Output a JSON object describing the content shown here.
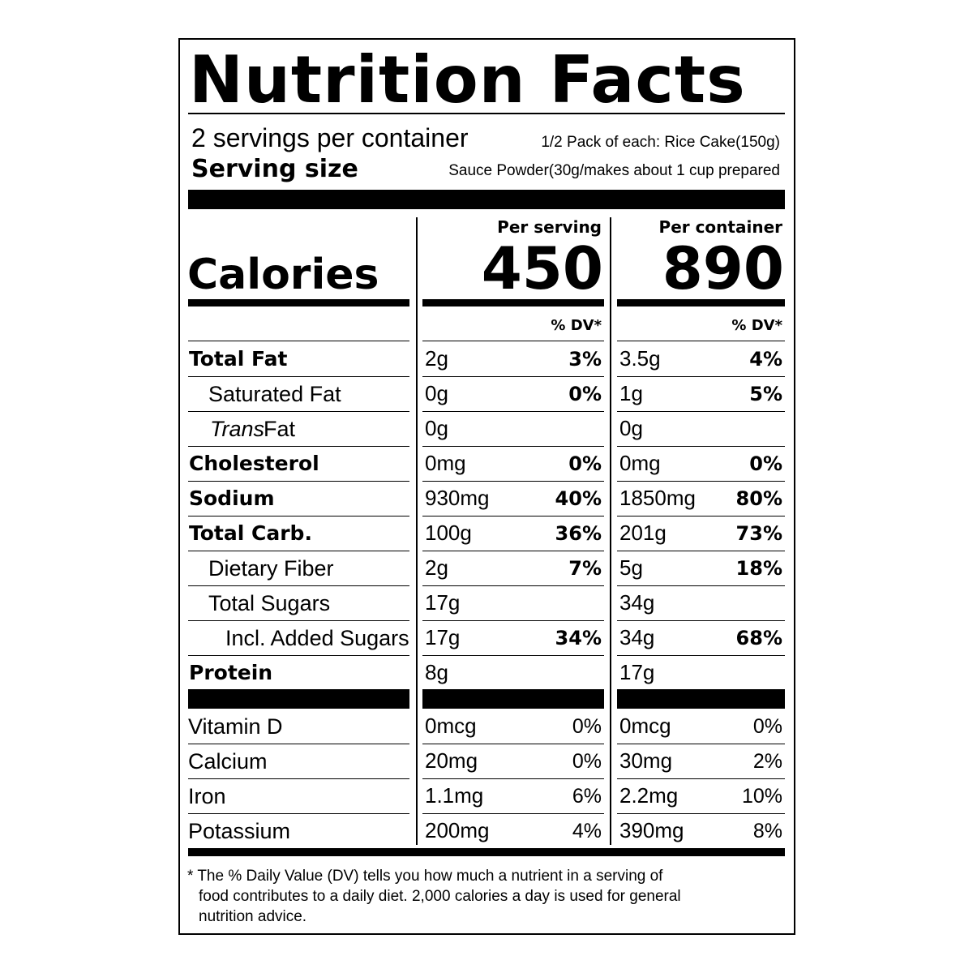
{
  "title": "Nutrition Facts",
  "servings": "2 servings per container",
  "serving_size_label": "Serving size",
  "serving_size_lines": [
    "1/2 Pack of each: Rice Cake(150g)",
    "Sauce Powder(30g/makes about 1 cup prepared"
  ],
  "columns": [
    "Per serving",
    "Per container"
  ],
  "calories_label": "Calories",
  "calories": [
    "450",
    "890"
  ],
  "dv_header": "% DV*",
  "nutrients": [
    {
      "name": "Total Fat",
      "bold": true,
      "indent": 0,
      "values": [
        [
          "2g",
          "3%"
        ],
        [
          "3.5g",
          "4%"
        ]
      ]
    },
    {
      "name": "Saturated Fat",
      "bold": false,
      "indent": 1,
      "values": [
        [
          "0g",
          "0%"
        ],
        [
          "1g",
          "5%"
        ]
      ]
    },
    {
      "name_italic": "Trans",
      "name": "Fat",
      "bold": false,
      "indent": 1,
      "values": [
        [
          "0g",
          null
        ],
        [
          "0g",
          null
        ]
      ]
    },
    {
      "name": "Cholesterol",
      "bold": true,
      "indent": 0,
      "values": [
        [
          "0mg",
          "0%"
        ],
        [
          "0mg",
          "0%"
        ]
      ]
    },
    {
      "name": "Sodium",
      "bold": true,
      "indent": 0,
      "values": [
        [
          "930mg",
          "40%"
        ],
        [
          "1850mg",
          "80%"
        ]
      ]
    },
    {
      "name": "Total Carb.",
      "bold": true,
      "indent": 0,
      "values": [
        [
          "100g",
          "36%"
        ],
        [
          "201g",
          "73%"
        ]
      ]
    },
    {
      "name": "Dietary Fiber",
      "bold": false,
      "indent": 1,
      "values": [
        [
          "2g",
          "7%"
        ],
        [
          "5g",
          "18%"
        ]
      ]
    },
    {
      "name": "Total Sugars",
      "bold": false,
      "indent": 1,
      "values": [
        [
          "17g",
          null
        ],
        [
          "34g",
          null
        ]
      ]
    },
    {
      "name": "Incl. Added Sugars",
      "bold": false,
      "indent": 2,
      "values": [
        [
          "17g",
          "34%"
        ],
        [
          "34g",
          "68%"
        ]
      ]
    },
    {
      "name": "Protein",
      "bold": true,
      "indent": 0,
      "values": [
        [
          "8g",
          null
        ],
        [
          "17g",
          null
        ]
      ]
    }
  ],
  "vitamins": [
    {
      "name": "Vitamin D",
      "values": [
        [
          "0mcg",
          "0%"
        ],
        [
          "0mcg",
          "0%"
        ]
      ]
    },
    {
      "name": "Calcium",
      "values": [
        [
          "20mg",
          "0%"
        ],
        [
          "30mg",
          "2%"
        ]
      ]
    },
    {
      "name": "Iron",
      "values": [
        [
          "1.1mg",
          "6%"
        ],
        [
          "2.2mg",
          "10%"
        ]
      ]
    },
    {
      "name": "Potassium",
      "values": [
        [
          "200mg",
          "4%"
        ],
        [
          "390mg",
          "8%"
        ]
      ]
    }
  ],
  "footnote": [
    "* The % Daily Value (DV) tells you how much a nutrient in a serving of",
    "food contributes to a daily diet. 2,000 calories a day is used for general",
    "nutrition advice."
  ]
}
